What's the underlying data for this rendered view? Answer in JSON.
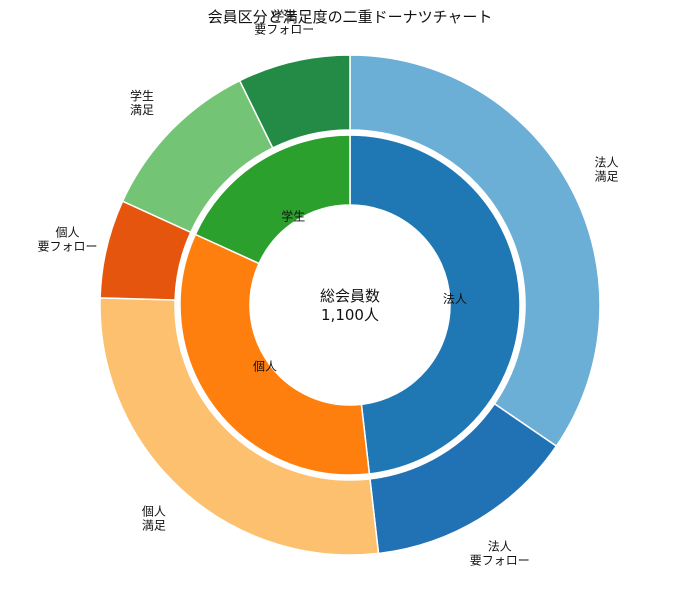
{
  "chart_data": {
    "type": "donut",
    "title": "会員区分と満足度の二重ドーナツチャート",
    "center_label": [
      "総会員数",
      "1,100人"
    ],
    "inner": [
      {
        "name": "法人",
        "value": 530,
        "color": "#1f77b4"
      },
      {
        "name": "個人",
        "value": 370,
        "color": "#ff7f0e"
      },
      {
        "name": "学生",
        "value": 200,
        "color": "#2ca02c"
      }
    ],
    "outer": [
      {
        "label": [
          "法人",
          "満足"
        ],
        "value": 380,
        "color": "#6baed6"
      },
      {
        "label": [
          "法人",
          "要フォロー"
        ],
        "value": 150,
        "color": "#2171b5"
      },
      {
        "label": [
          "個人",
          "満足"
        ],
        "value": 300,
        "color": "#fdc06e"
      },
      {
        "label": [
          "個人",
          "要フォロー"
        ],
        "value": 70,
        "color": "#e6550d"
      },
      {
        "label": [
          "学生",
          "満足"
        ],
        "value": 120,
        "color": "#74c476"
      },
      {
        "label": [
          "学生",
          "要フォロー"
        ],
        "value": 80,
        "color": "#238b45"
      }
    ]
  }
}
